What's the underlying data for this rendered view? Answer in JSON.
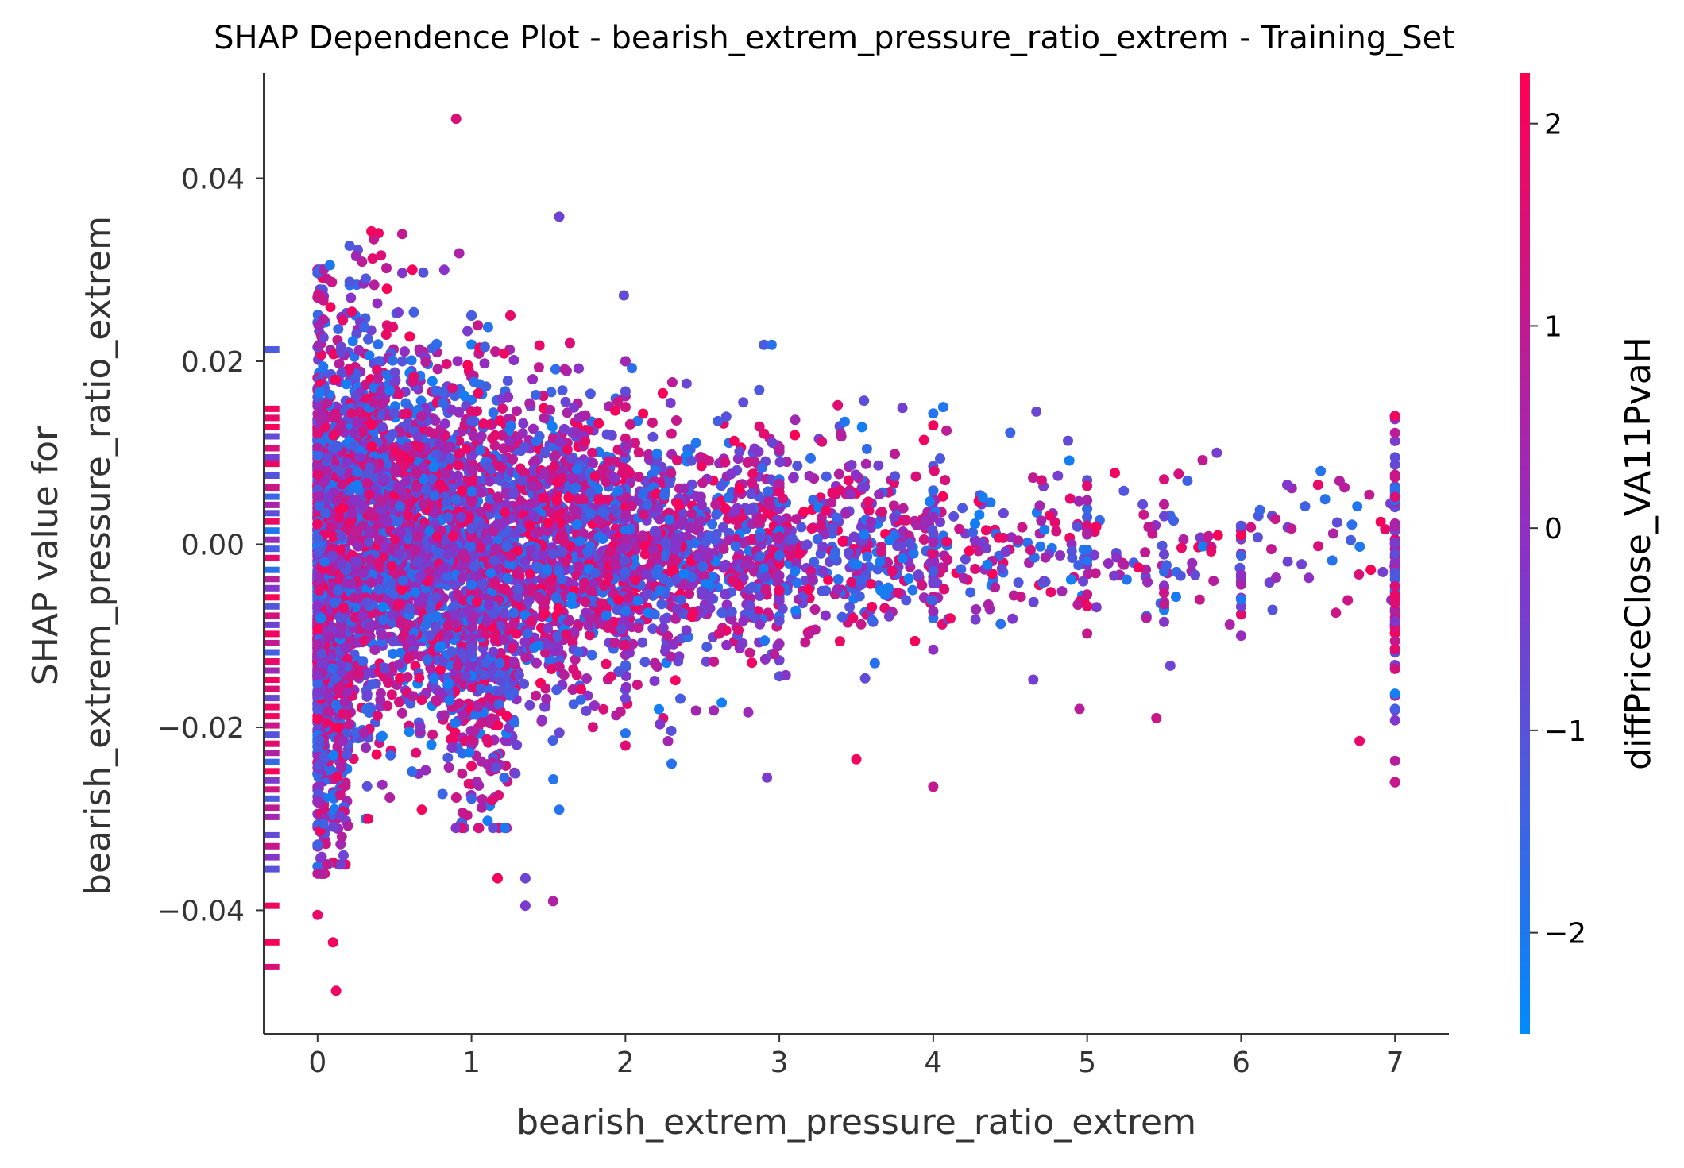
{
  "chart_data": {
    "type": "scatter",
    "title": "SHAP Dependence Plot - bearish_extrem_pressure_ratio_extrem - Training_Set",
    "xlabel": "bearish_extrem_pressure_ratio_extrem",
    "ylabel_lines": [
      "SHAP value for",
      "bearish_extrem_pressure_ratio_extrem"
    ],
    "colorbar_label": "diffPriceClose_VA11PvaH",
    "xlim": [
      -0.35,
      7.35
    ],
    "ylim": [
      -0.0535,
      0.0515
    ],
    "x_ticks": [
      0,
      1,
      2,
      3,
      4,
      5,
      6,
      7
    ],
    "x_tick_labels": [
      "0",
      "1",
      "2",
      "3",
      "4",
      "5",
      "6",
      "7"
    ],
    "y_ticks": [
      -0.04,
      -0.02,
      0.0,
      0.02,
      0.04
    ],
    "y_tick_labels": [
      "−0.04",
      "−0.02",
      "0.00",
      "0.02",
      "0.04"
    ],
    "colorbar_range": [
      -2.5,
      2.25
    ],
    "colorbar_ticks": [
      -2,
      -1,
      0,
      1,
      2
    ],
    "colorbar_tick_labels": [
      "−2",
      "−1",
      "0",
      "1",
      "2"
    ],
    "colors": {
      "low": "#008bfb",
      "mid": "#8a31c8",
      "high": "#ff0052",
      "axis": "#333333"
    },
    "grid": false,
    "legend": "colorbar-right",
    "nan_strip": {
      "x": -0.3,
      "values": [
        0.0213,
        0.0148,
        0.0138,
        0.0128,
        0.0118,
        0.0105,
        0.0095,
        0.0088,
        0.0075,
        0.0062,
        0.0052,
        0.0043,
        0.0034,
        0.0025,
        0.0015,
        0.0005,
        -0.0005,
        -0.0015,
        -0.0028,
        -0.0038,
        -0.0048,
        -0.0058,
        -0.0068,
        -0.0078,
        -0.0088,
        -0.0098,
        -0.0108,
        -0.0118,
        -0.0128,
        -0.0138,
        -0.0148,
        -0.0158,
        -0.0168,
        -0.0178,
        -0.0188,
        -0.0198,
        -0.0208,
        -0.0218,
        -0.0228,
        -0.0238,
        -0.0248,
        -0.0258,
        -0.0268,
        -0.0278,
        -0.0288,
        -0.0298,
        -0.0318,
        -0.033,
        -0.0342,
        -0.0355,
        -0.0395,
        -0.0435,
        -0.0462
      ],
      "color_values": [
        -1.2,
        2.0,
        1.8,
        2.1,
        -0.8,
        1.5,
        -0.5,
        2.0,
        -1.0,
        1.2,
        -1.5,
        0.5,
        -0.9,
        1.9,
        -2.0,
        0.2,
        -1.3,
        1.7,
        -1.8,
        0.8,
        -0.3,
        2.1,
        -1.1,
        1.4,
        -0.6,
        2.0,
        1.0,
        -1.4,
        1.8,
        0.3,
        2.1,
        1.6,
        -0.7,
        1.9,
        2.0,
        1.2,
        -1.0,
        1.7,
        0.6,
        -1.6,
        2.1,
        -0.4,
        1.3,
        -1.2,
        1.0,
        0.4,
        -0.8,
        1.1,
        -0.2,
        -1.0,
        2.0,
        2.1,
        1.5
      ]
    },
    "clusters": [
      {
        "x_range": [
          0.0,
          0.05
        ],
        "y_mean": -0.004,
        "y_sd": 0.013,
        "y_clip": [
          -0.036,
          0.03
        ],
        "n": 700
      },
      {
        "x_range": [
          0.05,
          0.2
        ],
        "y_mean": -0.006,
        "y_sd": 0.013,
        "y_clip": [
          -0.035,
          0.029
        ],
        "n": 650
      },
      {
        "x_range": [
          0.2,
          0.45
        ],
        "y_mean": 0.002,
        "y_sd": 0.011,
        "y_clip": [
          -0.03,
          0.034
        ],
        "n": 700
      },
      {
        "x_range": [
          0.45,
          0.85
        ],
        "y_mean": 0.001,
        "y_sd": 0.01,
        "y_clip": [
          -0.029,
          0.03
        ],
        "n": 900
      },
      {
        "x_range": [
          0.85,
          1.3
        ],
        "y_mean": -0.004,
        "y_sd": 0.011,
        "y_clip": [
          -0.031,
          0.025
        ],
        "n": 900
      },
      {
        "x_range": [
          1.3,
          1.8
        ],
        "y_mean": 0.0,
        "y_sd": 0.008,
        "y_clip": [
          -0.028,
          0.022
        ],
        "n": 650
      },
      {
        "x_range": [
          1.8,
          2.4
        ],
        "y_mean": 0.0,
        "y_sd": 0.007,
        "y_clip": [
          -0.024,
          0.02
        ],
        "n": 520
      },
      {
        "x_range": [
          2.4,
          3.0
        ],
        "y_mean": 0.0,
        "y_sd": 0.006,
        "y_clip": [
          -0.024,
          0.02
        ],
        "n": 380
      },
      {
        "x_range": [
          3.0,
          3.6
        ],
        "y_mean": 0.0,
        "y_sd": 0.005,
        "y_clip": [
          -0.02,
          0.016
        ],
        "n": 230
      },
      {
        "x_range": [
          3.6,
          4.1
        ],
        "y_mean": 0.0,
        "y_sd": 0.0045,
        "y_clip": [
          -0.02,
          0.015
        ],
        "n": 140
      },
      {
        "x_range": [
          4.1,
          5.0
        ],
        "y_mean": 0.0,
        "y_sd": 0.004,
        "y_clip": [
          -0.018,
          0.012
        ],
        "n": 110
      },
      {
        "x_range": [
          5.0,
          6.0
        ],
        "y_mean": 0.0,
        "y_sd": 0.004,
        "y_clip": [
          -0.018,
          0.01
        ],
        "n": 60
      },
      {
        "x_range": [
          6.0,
          7.0
        ],
        "y_mean": 0.0,
        "y_sd": 0.004,
        "y_clip": [
          -0.022,
          0.008
        ],
        "n": 40
      }
    ],
    "columns": [
      {
        "x": 0.0,
        "y_mean": -0.004,
        "y_sd": 0.012,
        "y_clip": [
          -0.036,
          0.03
        ],
        "n": 320
      },
      {
        "x": 1.0,
        "y_mean": -0.004,
        "y_sd": 0.012,
        "y_clip": [
          -0.03,
          0.025
        ],
        "n": 140
      },
      {
        "x": 2.0,
        "y_mean": 0.0,
        "y_sd": 0.008,
        "y_clip": [
          -0.022,
          0.02
        ],
        "n": 70
      },
      {
        "x": 3.0,
        "y_mean": 0.0,
        "y_sd": 0.006,
        "y_clip": [
          -0.015,
          0.012
        ],
        "n": 45
      },
      {
        "x": 4.0,
        "y_mean": 0.0,
        "y_sd": 0.005,
        "y_clip": [
          -0.015,
          0.013
        ],
        "n": 30
      },
      {
        "x": 5.0,
        "y_mean": 0.0,
        "y_sd": 0.004,
        "y_clip": [
          -0.01,
          0.007
        ],
        "n": 18
      },
      {
        "x": 5.5,
        "y_mean": -0.003,
        "y_sd": 0.004,
        "y_clip": [
          -0.011,
          0.007
        ],
        "n": 12
      },
      {
        "x": 6.0,
        "y_mean": -0.002,
        "y_sd": 0.004,
        "y_clip": [
          -0.01,
          0.002
        ],
        "n": 24
      },
      {
        "x": 7.0,
        "y_mean": -0.004,
        "y_sd": 0.009,
        "y_clip": [
          -0.026,
          0.014
        ],
        "n": 90
      }
    ],
    "outliers": [
      {
        "x": 0.9,
        "y": 0.0465,
        "c": 1.5
      },
      {
        "x": 1.57,
        "y": 0.0358,
        "c": -0.6
      },
      {
        "x": 0.35,
        "y": 0.0342,
        "c": 2.0
      },
      {
        "x": 0.55,
        "y": 0.0339,
        "c": 1.0
      },
      {
        "x": 0.92,
        "y": 0.0318,
        "c": 0.5
      },
      {
        "x": 0.25,
        "y": 0.0315,
        "c": 0.3
      },
      {
        "x": 0.08,
        "y": 0.0305,
        "c": -2.0
      },
      {
        "x": 1.99,
        "y": 0.0272,
        "c": -0.8
      },
      {
        "x": 2.9,
        "y": 0.0218,
        "c": -1.2
      },
      {
        "x": 2.95,
        "y": 0.0218,
        "c": -1.8
      },
      {
        "x": 3.55,
        "y": 0.0157,
        "c": -0.9
      },
      {
        "x": 3.8,
        "y": 0.0149,
        "c": -0.5
      },
      {
        "x": 4.0,
        "y": 0.0143,
        "c": -1.9
      },
      {
        "x": 4.5,
        "y": 0.0122,
        "c": -1.5
      },
      {
        "x": 4.67,
        "y": 0.0145,
        "c": -0.7
      },
      {
        "x": 5.18,
        "y": 0.0078,
        "c": 2.0
      },
      {
        "x": 5.5,
        "y": 0.0071,
        "c": 1.5
      },
      {
        "x": 5.75,
        "y": 0.0092,
        "c": 1.0
      },
      {
        "x": 6.3,
        "y": 0.0065,
        "c": -0.3
      },
      {
        "x": 6.5,
        "y": 0.0065,
        "c": 1.8
      },
      {
        "x": 7.0,
        "y": 0.014,
        "c": 2.0
      },
      {
        "x": 5.45,
        "y": -0.019,
        "c": 1.2
      },
      {
        "x": 4.95,
        "y": -0.018,
        "c": 0.8
      },
      {
        "x": 6.77,
        "y": -0.0215,
        "c": 1.8
      },
      {
        "x": 3.5,
        "y": -0.0235,
        "c": 2.0
      },
      {
        "x": 4.0,
        "y": -0.0265,
        "c": 1.0
      },
      {
        "x": 2.92,
        "y": -0.0255,
        "c": -0.4
      },
      {
        "x": 2.3,
        "y": -0.024,
        "c": -1.8
      },
      {
        "x": 1.57,
        "y": -0.029,
        "c": -1.9
      },
      {
        "x": 1.17,
        "y": -0.0365,
        "c": 2.0
      },
      {
        "x": 1.35,
        "y": -0.0365,
        "c": -0.6
      },
      {
        "x": 1.35,
        "y": -0.0395,
        "c": -0.4
      },
      {
        "x": 1.53,
        "y": -0.039,
        "c": 0.6
      },
      {
        "x": 0.0,
        "y": -0.0405,
        "c": 1.8
      },
      {
        "x": 0.1,
        "y": -0.0435,
        "c": 2.0
      },
      {
        "x": 0.12,
        "y": -0.0488,
        "c": 1.9
      },
      {
        "x": 4.65,
        "y": -0.0148,
        "c": -0.5
      },
      {
        "x": 3.62,
        "y": -0.013,
        "c": -1.8
      }
    ]
  }
}
